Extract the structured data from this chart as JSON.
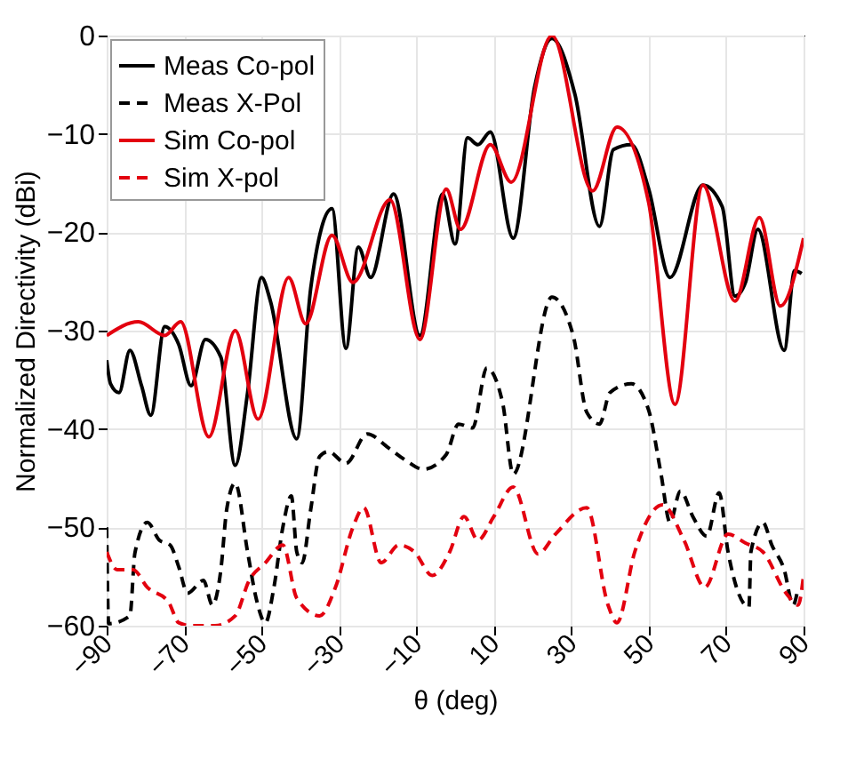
{
  "chart_data": {
    "type": "line",
    "xlabel": "θ (deg)",
    "ylabel": "Normalized Directivity (dBi)",
    "xlim": [
      -90,
      90
    ],
    "xticks": [
      -90,
      -70,
      -50,
      -30,
      -10,
      10,
      30,
      50,
      70,
      90
    ],
    "ylim": [
      -60,
      0
    ],
    "yticks": [
      -60,
      -50,
      -40,
      -30,
      -20,
      -10,
      0
    ],
    "grid": true,
    "legend": "top left",
    "marker": "none",
    "series": [
      {
        "name": "Meas Co-pol",
        "color": "#000000",
        "line_style": "solid",
        "x": [
          -90,
          -89,
          -86.8,
          -84,
          -81,
          -78.6,
          -75,
          -71.4,
          -68.2,
          -64.5,
          -60.5,
          -56.8,
          -53.6,
          -50,
          -47.7,
          -40.9,
          -37.3,
          -31.8,
          -28.2,
          -25,
          -21.8,
          -15.9,
          -9.1,
          -3.2,
          0,
          3.2,
          5.9,
          9.1,
          15,
          20.5,
          25,
          30.9,
          37.3,
          40.9,
          45.5,
          50,
          55.5,
          64,
          69,
          72.3,
          75,
          78.2,
          85,
          87.7,
          89.5
        ],
        "values": [
          -33,
          -35.4,
          -36.3,
          -32,
          -35.6,
          -38.6,
          -29.6,
          -31.4,
          -35.6,
          -30.9,
          -32.7,
          -43.7,
          -36.3,
          -24.6,
          -27,
          -41,
          -25.7,
          -17.6,
          -31.8,
          -21.5,
          -24.6,
          -16.1,
          -30.5,
          -16.1,
          -21.2,
          -10.4,
          -11.1,
          -9.8,
          -20.6,
          -5.3,
          -0.3,
          -5.9,
          -19.4,
          -11.6,
          -11.1,
          -15.6,
          -24.6,
          -15.2,
          -17.4,
          -26.5,
          -25.1,
          -19.7,
          -32,
          -23.9,
          -24.2
        ]
      },
      {
        "name": "Meas X-Pol",
        "color": "#000000",
        "line_style": "dashed",
        "x": [
          -90,
          -89.5,
          -84,
          -82.7,
          -79.5,
          -76.4,
          -73.6,
          -71.4,
          -69.1,
          -65,
          -62.7,
          -60.5,
          -59,
          -56.8,
          -53.6,
          -51.4,
          -49,
          -46.8,
          -44.5,
          -42.3,
          -40.9,
          -39.5,
          -37.3,
          -35,
          -32.7,
          -28.2,
          -22.7,
          -17.3,
          -12.7,
          -8.2,
          -2.3,
          0.9,
          4.5,
          8.2,
          12.3,
          15,
          25,
          30.5,
          34,
          37.3,
          40,
          45.5,
          50,
          53.2,
          55.5,
          58.2,
          61.4,
          65,
          68.2,
          70.5,
          75.9,
          76.4,
          79.5,
          81.8,
          85,
          87.3,
          88.6
        ],
        "values": [
          -50,
          -59.8,
          -59,
          -52.6,
          -49.5,
          -51.3,
          -51.8,
          -54,
          -56.7,
          -55.4,
          -57.9,
          -54.3,
          -48.2,
          -45.5,
          -52.5,
          -57.2,
          -59.7,
          -56.1,
          -50,
          -46.8,
          -52.5,
          -53.6,
          -48.2,
          -42.8,
          -42.3,
          -43.5,
          -40.5,
          -41.9,
          -43.2,
          -44.1,
          -42.6,
          -39.5,
          -39.9,
          -33.8,
          -37.4,
          -44.6,
          -26.6,
          -30.5,
          -38.3,
          -39.5,
          -36.3,
          -35.4,
          -38.1,
          -44.6,
          -49.5,
          -46.3,
          -48.9,
          -50.9,
          -46.5,
          -52.5,
          -58.1,
          -52.5,
          -49.5,
          -51.8,
          -54.3,
          -57.9,
          -56.1
        ]
      },
      {
        "name": "Sim Co-pol",
        "color": "#e3000f",
        "line_style": "solid",
        "x": [
          -90,
          -81.8,
          -75,
          -70.9,
          -63.6,
          -56.8,
          -50.9,
          -43,
          -38.6,
          -31.8,
          -26.4,
          -16.8,
          -9.1,
          -2.3,
          1.4,
          9.1,
          14.5,
          25,
          35.5,
          41.8,
          50,
          56.8,
          64,
          72.3,
          78.6,
          84,
          90
        ],
        "values": [
          -30.5,
          -29.1,
          -30.5,
          -29.1,
          -40.8,
          -30,
          -39,
          -24.6,
          -29.3,
          -20.3,
          -25.1,
          -16.7,
          -30.9,
          -15.6,
          -19.7,
          -11.1,
          -14.9,
          0,
          -15.8,
          -9.3,
          -17,
          -37.5,
          -15.2,
          -27,
          -18.5,
          -27.5,
          -20.6
        ]
      },
      {
        "name": "Sim X-pol",
        "color": "#e3000f",
        "line_style": "dashed",
        "x": [
          -90,
          -87.3,
          -83.2,
          -79.5,
          -74,
          -71.4,
          -68,
          -62,
          -56.8,
          -53.2,
          -49,
          -44.5,
          -40.9,
          -35,
          -30.9,
          -26.4,
          -23.6,
          -19.1,
          -14.5,
          -10.5,
          -5.9,
          -1.4,
          2.3,
          5.9,
          10,
          15,
          21.4,
          25.9,
          34,
          39.5,
          41.8,
          46.4,
          53.6,
          59.1,
          64.5,
          70.5,
          75,
          79.5,
          85.5,
          88.6,
          90
        ],
        "values": [
          -52.5,
          -54.3,
          -54.3,
          -56.1,
          -57.6,
          -59.7,
          -60,
          -60,
          -59,
          -55.4,
          -53.6,
          -51.8,
          -57.2,
          -59,
          -56.1,
          -50,
          -48,
          -53.6,
          -51.8,
          -52.5,
          -54.9,
          -52.5,
          -48.9,
          -51.3,
          -48.9,
          -45.9,
          -52.7,
          -50.7,
          -48,
          -57.9,
          -59.7,
          -52.5,
          -47.7,
          -51.3,
          -56.1,
          -50.7,
          -51.6,
          -52.5,
          -56.7,
          -57.9,
          -54.9
        ]
      }
    ]
  }
}
